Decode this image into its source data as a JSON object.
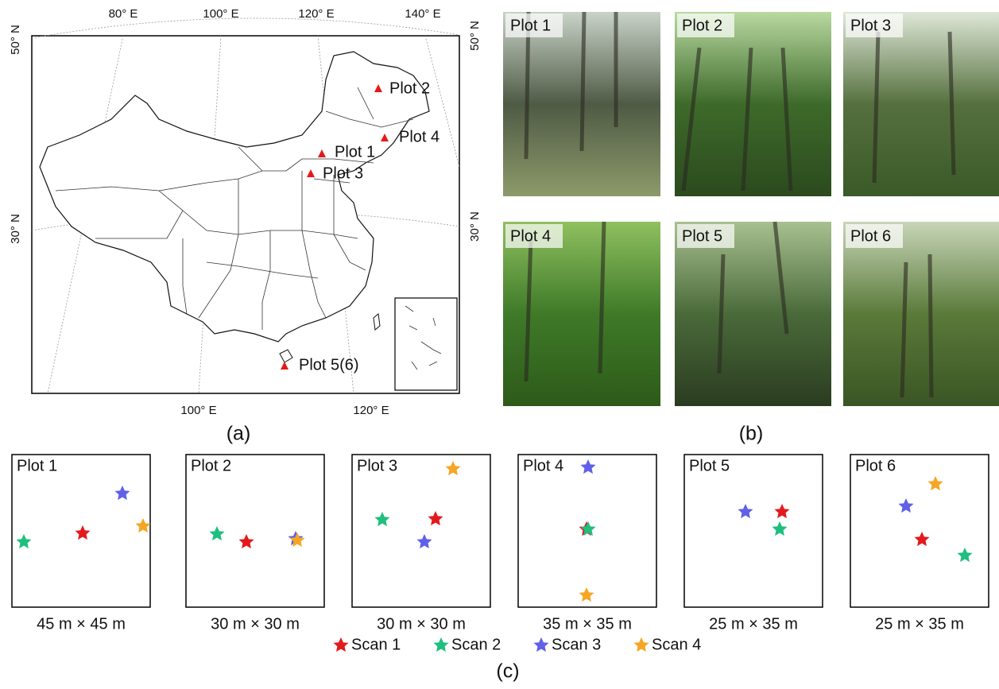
{
  "panel_a": {
    "top_ticks": [
      "80° E",
      "100° E",
      "120° E",
      "140° E"
    ],
    "bottom_ticks": [
      "100° E",
      "120° E"
    ],
    "left_ticks": [
      "50° N",
      "30° N"
    ],
    "right_ticks": [
      "50° N",
      "30° N"
    ],
    "sites": [
      "Plot 2",
      "Plot 4",
      "Plot 1",
      "Plot 3",
      "Plot 5(6)"
    ],
    "caption": "(a)"
  },
  "panel_b": {
    "photos": [
      "Plot 1",
      "Plot 2",
      "Plot 3",
      "Plot 4",
      "Plot 5",
      "Plot 6"
    ],
    "caption": "(b)"
  },
  "panel_c": {
    "plots": [
      {
        "label": "Plot 1",
        "size": "45 m × 45 m"
      },
      {
        "label": "Plot 2",
        "size": "30 m × 30 m"
      },
      {
        "label": "Plot 3",
        "size": "30 m × 30 m"
      },
      {
        "label": "Plot 4",
        "size": "35 m × 35 m"
      },
      {
        "label": "Plot 5",
        "size": "25 m × 35 m"
      },
      {
        "label": "Plot 6",
        "size": "25 m × 35 m"
      }
    ],
    "legend": [
      "Scan 1",
      "Scan 2",
      "Scan 3",
      "Scan 4"
    ],
    "caption": "(c)"
  }
}
